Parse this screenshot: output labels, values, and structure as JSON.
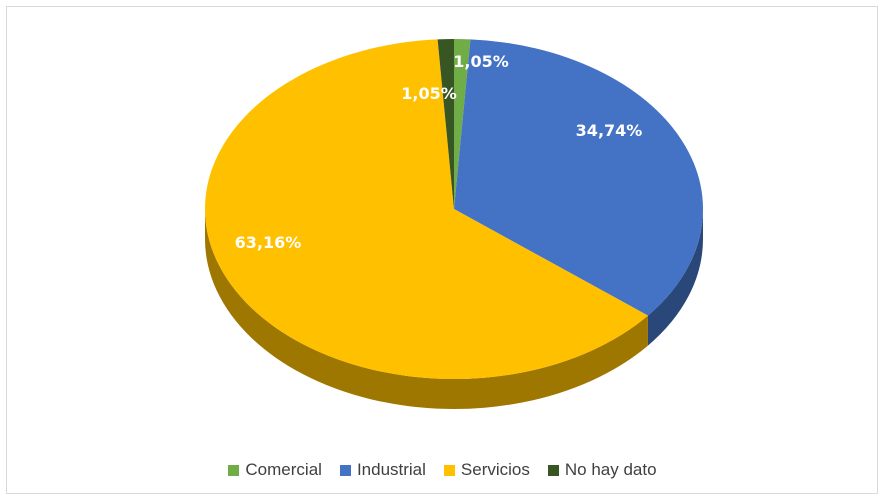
{
  "chart_data": {
    "type": "pie",
    "title": "",
    "slices": [
      {
        "name": "Comercial",
        "value": 1.05,
        "label": "1,05%",
        "color": "#70ad47"
      },
      {
        "name": "Industrial",
        "value": 34.74,
        "label": "34,74%",
        "color": "#4472c4"
      },
      {
        "name": "Servicios",
        "value": 63.16,
        "label": "63,16%",
        "color": "#ffc000"
      },
      {
        "name": "No hay dato",
        "value": 1.05,
        "label": "1,05%",
        "color": "#375623"
      }
    ],
    "legend_position": "bottom",
    "style": "3d-tilted"
  }
}
